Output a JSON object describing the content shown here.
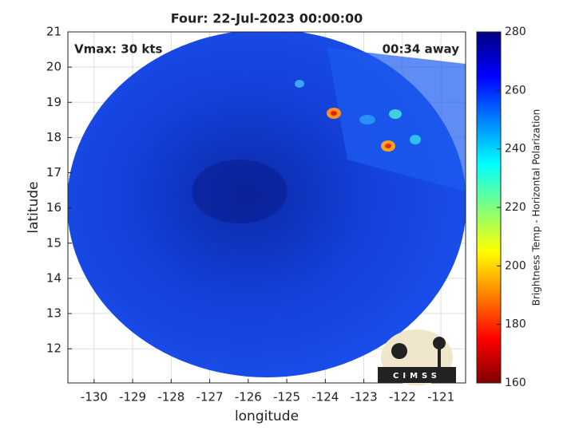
{
  "title": "Four: 22-Jul-2023 00:00:00",
  "annotations": {
    "vmax": "Vmax: 30 kts",
    "time_away": "00:34 away"
  },
  "map": {
    "xlabel": "longitude",
    "ylabel": "latitude",
    "xlim": [
      -130.68,
      -120.36
    ],
    "ylim": [
      11.03,
      21
    ],
    "xticks": [
      -130,
      -129,
      -128,
      -127,
      -126,
      -125,
      -124,
      -123,
      -122,
      -121
    ],
    "yticks": [
      12,
      13,
      14,
      15,
      16,
      17,
      18,
      19,
      20,
      21
    ],
    "grid": true
  },
  "colorbar": {
    "label": "Brightness Temp - Horizontal Polarization",
    "clim": [
      160,
      280
    ],
    "ticks": [
      160,
      180,
      200,
      220,
      240,
      260,
      280
    ]
  },
  "logo": "CIMSS"
}
